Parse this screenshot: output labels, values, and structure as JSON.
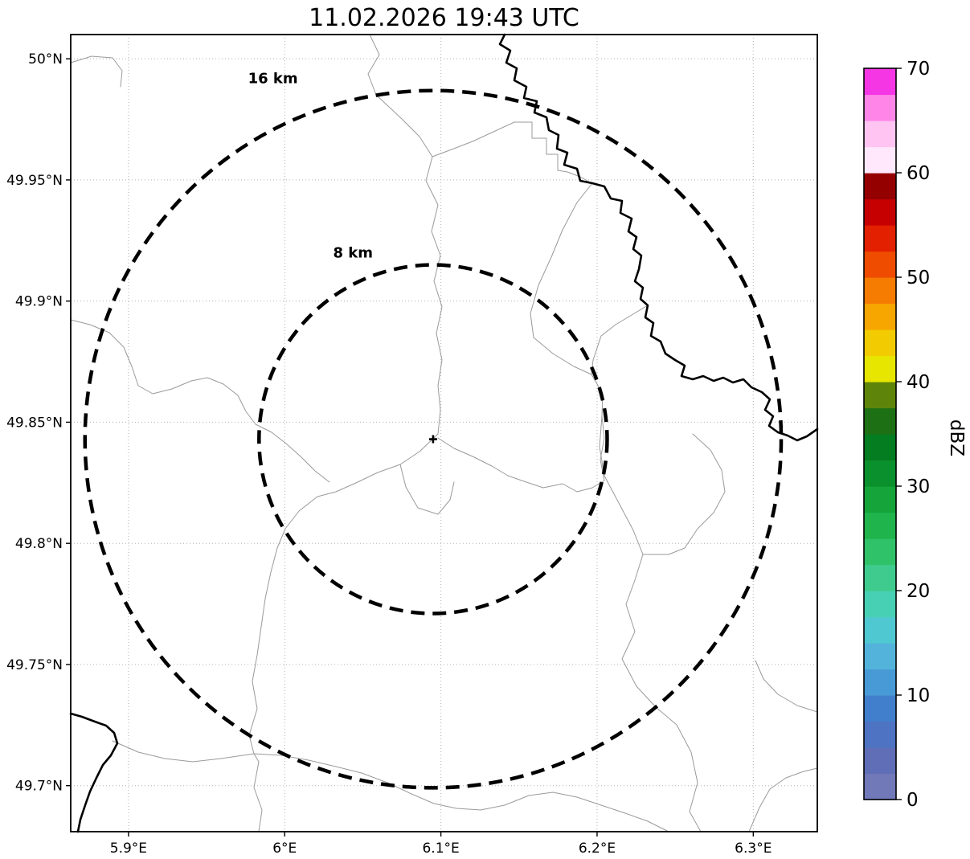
{
  "chart_data": {
    "type": "map",
    "title": "11.02.2026 19:43 UTC",
    "x_axis": {
      "tick_labels": [
        "5.9°E",
        "6°E",
        "6.1°E",
        "6.2°E",
        "6.3°E"
      ],
      "tick_values": [
        5.9,
        6.0,
        6.1,
        6.2,
        6.3
      ],
      "range": [
        5.863,
        6.341
      ]
    },
    "y_axis": {
      "tick_labels": [
        "50°N",
        "49.95°N",
        "49.9°N",
        "49.85°N",
        "49.8°N",
        "49.75°N",
        "49.7°N"
      ],
      "tick_values": [
        50.0,
        49.95,
        49.9,
        49.85,
        49.8,
        49.75,
        49.7
      ],
      "range": [
        49.681,
        50.01
      ]
    },
    "grid": "dotted",
    "radar_center": {
      "lon": 6.095,
      "lat": 49.843,
      "marker": "+"
    },
    "range_rings": [
      {
        "label": "16 km",
        "radius_km": 16
      },
      {
        "label": "8 km",
        "radius_km": 8
      }
    ],
    "echoes": [],
    "colorbar": {
      "label": "dBZ",
      "tick_labels": [
        "0",
        "10",
        "20",
        "30",
        "40",
        "50",
        "60",
        "70"
      ],
      "tick_values": [
        0,
        10,
        20,
        30,
        40,
        50,
        60,
        70
      ],
      "range": [
        0,
        70
      ],
      "segment_step": 2.5,
      "colors_bottom_to_top": [
        "#7179b9",
        "#5f6eb6",
        "#4d73c2",
        "#417fcc",
        "#489ad6",
        "#54b3da",
        "#50c8d2",
        "#47d0b4",
        "#3fcb8d",
        "#2fc268",
        "#20b44c",
        "#14a43a",
        "#0a902c",
        "#047c20",
        "#1e7014",
        "#5f840a",
        "#e6e600",
        "#f2cc00",
        "#f7a600",
        "#f57c00",
        "#ef4c00",
        "#e32000",
        "#c60000",
        "#940000",
        "#ffe8fb",
        "#ffc4f2",
        "#ff86e8",
        "#f436e4"
      ]
    }
  },
  "styles": {
    "grid_color": "#b0b0b0",
    "boundary_color": "#9a9a9a",
    "border_color": "#000000",
    "ring_color": "#000000",
    "background": "#ffffff"
  }
}
